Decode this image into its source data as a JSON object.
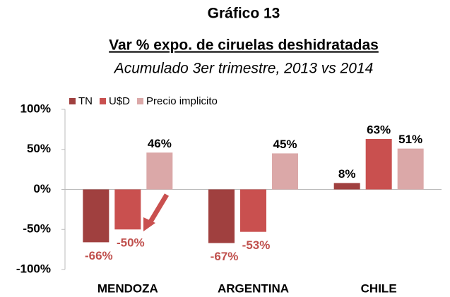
{
  "chart_data": {
    "type": "bar",
    "title": "Gráfico 13",
    "subtitle": "Var % expo. de ciruelas deshidratadas",
    "period": "Acumulado 3er trimestre, 2013 vs 2014",
    "categories": [
      "MENDOZA",
      "ARGENTINA",
      "CHILE"
    ],
    "series": [
      {
        "name": "TN",
        "color": "#a0403f",
        "values": [
          -66,
          -67,
          8
        ],
        "value_labels": [
          "-66%",
          "-67%",
          "8%"
        ]
      },
      {
        "name": "U$D",
        "color": "#c9504f",
        "values": [
          -50,
          -53,
          63
        ],
        "value_labels": [
          "-50%",
          "-53%",
          "63%"
        ]
      },
      {
        "name": "Precio implicito",
        "color": "#dba8a8",
        "values": [
          46,
          45,
          51
        ],
        "value_labels": [
          "46%",
          "45%",
          "51%"
        ]
      }
    ],
    "ylim": [
      -100,
      100
    ],
    "yticks": [
      {
        "value": -100,
        "label": "-100%"
      },
      {
        "value": -50,
        "label": "-50%"
      },
      {
        "value": 0,
        "label": "0%"
      },
      {
        "value": 50,
        "label": "50%"
      },
      {
        "value": 100,
        "label": "100%"
      }
    ],
    "grid": false,
    "legend": "top-left",
    "negative_label_color": "#c0504d"
  }
}
